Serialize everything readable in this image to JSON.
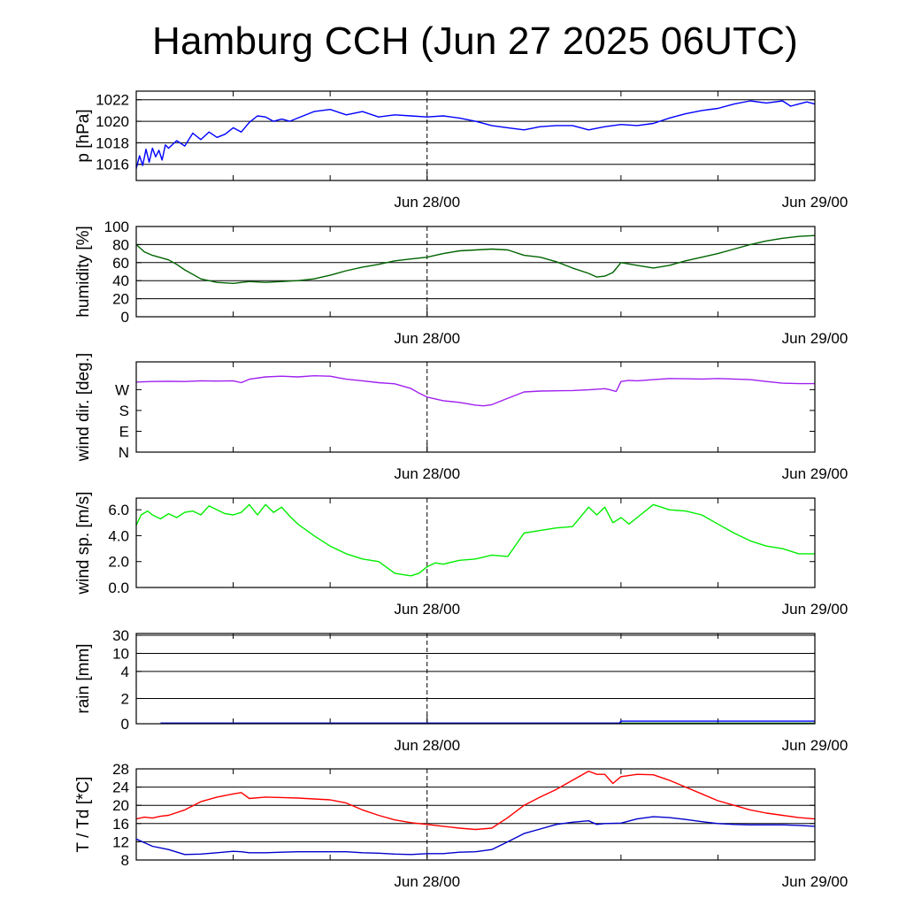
{
  "title": "Hamburg CCH (Jun 27 2025 06UTC)",
  "chart_data": [
    {
      "type": "line",
      "ylabel": "p [hPa]",
      "x_axis": {
        "range_hours": [
          0,
          42
        ],
        "ticks": [
          {
            "hour": 18,
            "label": "Jun 28/00"
          },
          {
            "hour": 42,
            "label": "Jun 29/00"
          }
        ],
        "minor_ticks_hours": [
          6,
          12,
          30,
          36
        ],
        "marker_hour": 18
      },
      "ylim": [
        1014.5,
        1022.8
      ],
      "yticks": [
        1016,
        1018,
        1020,
        1022
      ],
      "grid": true,
      "series": [
        {
          "color": "#0000ff",
          "x": [
            0,
            0.2,
            0.4,
            0.6,
            0.8,
            1.0,
            1.2,
            1.4,
            1.6,
            1.8,
            2.0,
            2.5,
            3.0,
            3.5,
            4.0,
            4.5,
            5.0,
            5.5,
            6.0,
            6.5,
            7.0,
            7.5,
            8.0,
            8.5,
            9.0,
            9.5,
            10.0,
            11.0,
            12.0,
            13.0,
            14.0,
            15.0,
            16.0,
            17.0,
            18.0,
            19.0,
            20.0,
            21.0,
            22.0,
            23.0,
            24.0,
            25.0,
            26.0,
            27.0,
            28.0,
            29.0,
            30.0,
            31.0,
            32.0,
            33.0,
            34.0,
            35.0,
            36.0,
            37.0,
            38.0,
            39.0,
            40.0,
            40.5,
            41.0,
            41.5,
            42.0
          ],
          "y": [
            1015.6,
            1016.8,
            1015.9,
            1017.4,
            1016.2,
            1017.5,
            1016.7,
            1017.3,
            1016.4,
            1017.8,
            1017.5,
            1018.2,
            1017.7,
            1018.9,
            1018.3,
            1019.0,
            1018.5,
            1018.8,
            1019.4,
            1019.0,
            1019.9,
            1020.5,
            1020.4,
            1020.0,
            1020.2,
            1020.0,
            1020.3,
            1020.9,
            1021.1,
            1020.6,
            1020.9,
            1020.4,
            1020.6,
            1020.5,
            1020.4,
            1020.5,
            1020.3,
            1020.0,
            1019.6,
            1019.4,
            1019.2,
            1019.5,
            1019.6,
            1019.6,
            1019.2,
            1019.5,
            1019.7,
            1019.6,
            1019.8,
            1020.3,
            1020.7,
            1021.0,
            1021.2,
            1021.6,
            1021.9,
            1021.7,
            1021.9,
            1021.4,
            1021.6,
            1021.8,
            1021.6
          ]
        }
      ]
    },
    {
      "type": "line",
      "ylabel": "humidity [%]",
      "x_axis": {
        "range_hours": [
          0,
          42
        ],
        "ticks": [
          {
            "hour": 18,
            "label": "Jun 28/00"
          },
          {
            "hour": 42,
            "label": "Jun 29/00"
          }
        ],
        "minor_ticks_hours": [
          6,
          12,
          30,
          36
        ],
        "marker_hour": 18
      },
      "ylim": [
        0,
        100
      ],
      "yticks": [
        0,
        20,
        40,
        60,
        80,
        100
      ],
      "grid": true,
      "series": [
        {
          "color": "#006400",
          "x": [
            0,
            0.5,
            1,
            2,
            2.5,
            3,
            4,
            5,
            6,
            7,
            8,
            9,
            10,
            11,
            12,
            13,
            14,
            15,
            16,
            17,
            18,
            19,
            20,
            21,
            22,
            23,
            24,
            25,
            26,
            27,
            28,
            28.5,
            29,
            29.5,
            30,
            31,
            32,
            33,
            34,
            35,
            36,
            37,
            38,
            39,
            40,
            41,
            42
          ],
          "y": [
            80,
            72,
            68,
            63,
            58,
            52,
            42,
            38,
            37,
            39,
            38,
            39,
            40,
            42,
            46,
            51,
            55,
            58,
            62,
            64,
            66,
            70,
            73,
            74,
            75,
            74,
            68,
            66,
            61,
            54,
            48,
            44,
            45,
            49,
            60,
            57,
            54,
            57,
            62,
            66,
            70,
            75,
            80,
            84,
            87,
            89,
            90
          ]
        }
      ]
    },
    {
      "type": "line",
      "ylabel": "wind dir. [deg.]",
      "x_axis": {
        "range_hours": [
          0,
          42
        ],
        "ticks": [
          {
            "hour": 18,
            "label": "Jun 28/00"
          },
          {
            "hour": 42,
            "label": "Jun 29/00"
          }
        ],
        "minor_ticks_hours": [
          6,
          12,
          30,
          36
        ],
        "marker_hour": 18
      },
      "ylim": [
        0,
        390
      ],
      "yticks": [
        {
          "value": 0,
          "label": "N"
        },
        {
          "value": 90,
          "label": "E"
        },
        {
          "value": 180,
          "label": "S"
        },
        {
          "value": 270,
          "label": "W"
        }
      ],
      "grid": false,
      "series": [
        {
          "color": "#a020f0",
          "x": [
            0,
            1,
            2,
            3,
            4,
            5,
            6,
            6.5,
            7,
            8,
            9,
            10,
            11,
            12,
            13,
            14,
            15,
            16,
            17,
            17.5,
            18,
            19,
            20,
            21,
            21.5,
            22,
            23,
            24,
            25,
            26,
            27,
            28,
            29,
            29.3,
            29.7,
            30,
            30.5,
            31,
            32,
            33,
            34,
            35,
            36,
            37,
            38,
            39,
            40,
            41,
            42
          ],
          "y": [
            303,
            305,
            306,
            305,
            308,
            307,
            308,
            300,
            315,
            325,
            328,
            325,
            330,
            328,
            315,
            308,
            300,
            295,
            275,
            255,
            238,
            222,
            215,
            203,
            200,
            205,
            233,
            260,
            264,
            265,
            266,
            269,
            274,
            270,
            262,
            305,
            310,
            308,
            313,
            318,
            317,
            316,
            318,
            316,
            313,
            305,
            298,
            296,
            296
          ]
        }
      ]
    },
    {
      "type": "line",
      "ylabel": "wind sp. [m/s]",
      "x_axis": {
        "range_hours": [
          0,
          42
        ],
        "ticks": [
          {
            "hour": 18,
            "label": "Jun 28/00"
          },
          {
            "hour": 42,
            "label": "Jun 29/00"
          }
        ],
        "minor_ticks_hours": [
          6,
          12,
          30,
          36
        ],
        "marker_hour": 18
      },
      "ylim": [
        0,
        6.9
      ],
      "yticks": [
        {
          "value": 0,
          "label": "0.0"
        },
        {
          "value": 2,
          "label": "2.0"
        },
        {
          "value": 4,
          "label": "4.0"
        },
        {
          "value": 6,
          "label": "6.0"
        }
      ],
      "grid": false,
      "series": [
        {
          "color": "#00ee00",
          "x": [
            0,
            0.3,
            0.7,
            1,
            1.5,
            2,
            2.5,
            3,
            3.5,
            4,
            4.5,
            5,
            5.5,
            6,
            6.5,
            7,
            7.5,
            8,
            8.5,
            9,
            9.5,
            10,
            11,
            12,
            13,
            14,
            15,
            16,
            16.5,
            17,
            17.5,
            18,
            18.5,
            19,
            20,
            21,
            22,
            23,
            24,
            25,
            26,
            27,
            28,
            28.5,
            29,
            29.5,
            30,
            30.5,
            31,
            32,
            33,
            34,
            35,
            36,
            37,
            38,
            39,
            40,
            41,
            42
          ],
          "y": [
            4.8,
            5.6,
            5.9,
            5.6,
            5.3,
            5.7,
            5.4,
            5.8,
            5.9,
            5.6,
            6.3,
            6.0,
            5.7,
            5.6,
            5.8,
            6.4,
            5.6,
            6.4,
            5.8,
            6.2,
            5.5,
            4.9,
            4.0,
            3.2,
            2.6,
            2.2,
            2.0,
            1.1,
            1.0,
            0.9,
            1.1,
            1.6,
            1.9,
            1.8,
            2.1,
            2.2,
            2.5,
            2.4,
            4.2,
            4.4,
            4.6,
            4.7,
            6.2,
            5.6,
            6.2,
            5.0,
            5.4,
            4.9,
            5.4,
            6.4,
            6.0,
            5.9,
            5.6,
            4.9,
            4.2,
            3.6,
            3.2,
            3.0,
            2.6,
            2.6
          ]
        }
      ]
    },
    {
      "type": "line",
      "ylabel": "rain [mm]",
      "x_axis": {
        "range_hours": [
          0,
          42
        ],
        "ticks": [
          {
            "hour": 18,
            "label": "Jun 28/00"
          },
          {
            "hour": 42,
            "label": "Jun 29/00"
          }
        ],
        "minor_ticks_hours": [
          6,
          12,
          30,
          36
        ],
        "marker_hour": 18
      },
      "yticks": [
        {
          "value": 0,
          "label": "0"
        },
        {
          "value": 2,
          "label": "2"
        },
        {
          "value": 4,
          "label": "4"
        },
        {
          "value": 10,
          "label": "10"
        },
        {
          "value": 30,
          "label": "30"
        }
      ],
      "yscale": "nonlinear",
      "grid": true,
      "series": [
        {
          "color": "#008000",
          "x": [
            1.5,
            42
          ],
          "y": [
            0.05,
            0.05
          ]
        },
        {
          "color": "#0000ff",
          "x": [
            1.5,
            29.9,
            30,
            42
          ],
          "y": [
            0.05,
            0.05,
            0.2,
            0.2
          ]
        }
      ]
    },
    {
      "type": "line",
      "ylabel": "T / Td [*C]",
      "x_axis": {
        "range_hours": [
          0,
          42
        ],
        "ticks": [
          {
            "hour": 18,
            "label": "Jun 28/00"
          },
          {
            "hour": 42,
            "label": "Jun 29/00"
          }
        ],
        "minor_ticks_hours": [
          6,
          12,
          30,
          36
        ],
        "marker_hour": 18
      },
      "ylim": [
        8,
        28
      ],
      "yticks": [
        8,
        12,
        16,
        20,
        24,
        28
      ],
      "grid": true,
      "series": [
        {
          "color": "#ff0000",
          "x": [
            0,
            0.5,
            1,
            1.5,
            2,
            3,
            4,
            5,
            6,
            6.5,
            7,
            8,
            9,
            10,
            11,
            12,
            13,
            14,
            15,
            16,
            17,
            18,
            19,
            20,
            21,
            22,
            23,
            24,
            25,
            26,
            27,
            28,
            28.5,
            29,
            29.5,
            30,
            31,
            32,
            33,
            34,
            35,
            36,
            37,
            38,
            39,
            40,
            41,
            42
          ],
          "y": [
            17.0,
            17.4,
            17.2,
            17.6,
            17.8,
            19.0,
            20.8,
            21.8,
            22.5,
            22.8,
            21.5,
            21.8,
            21.7,
            21.6,
            21.4,
            21.2,
            20.5,
            19.0,
            17.8,
            16.8,
            16.2,
            15.8,
            15.4,
            15.0,
            14.7,
            15.0,
            17.3,
            20.0,
            21.8,
            23.5,
            25.5,
            27.5,
            26.8,
            26.8,
            24.8,
            26.3,
            26.8,
            26.7,
            25.5,
            24.0,
            22.5,
            21.0,
            20.0,
            19.0,
            18.3,
            17.8,
            17.3,
            17.0
          ]
        }
      ]
    },
    {
      "type": "line",
      "x_axis": {
        "range_hours": [
          0,
          42
        ],
        "ticks": [
          {
            "hour": 18,
            "label": "Jun 28/00"
          },
          {
            "hour": 42,
            "label": "Jun 29/00"
          }
        ],
        "minor_ticks_hours": [
          6,
          12,
          30,
          36
        ],
        "marker_hour": 18
      },
      "ylim": [
        8,
        28
      ],
      "series": [
        {
          "color": "#0000cc",
          "x": [
            0,
            0.5,
            1,
            2,
            3,
            4,
            5,
            6,
            6.5,
            7,
            8,
            9,
            10,
            11,
            12,
            13,
            14,
            15,
            16,
            17,
            18,
            19,
            20,
            21,
            22,
            23,
            24,
            25,
            26,
            27,
            28,
            28.5,
            29,
            30,
            31,
            32,
            33,
            34,
            35,
            36,
            37,
            38,
            39,
            40,
            41,
            42
          ],
          "y": [
            12.6,
            11.8,
            11.0,
            10.3,
            9.2,
            9.3,
            9.6,
            9.9,
            9.8,
            9.6,
            9.6,
            9.7,
            9.8,
            9.8,
            9.8,
            9.8,
            9.6,
            9.5,
            9.3,
            9.2,
            9.4,
            9.4,
            9.7,
            9.8,
            10.3,
            12.0,
            13.8,
            14.8,
            15.8,
            16.3,
            16.6,
            15.8,
            16.0,
            16.1,
            17.0,
            17.5,
            17.3,
            16.9,
            16.4,
            16.0,
            15.8,
            15.7,
            15.7,
            15.7,
            15.6,
            15.4
          ]
        }
      ]
    }
  ]
}
